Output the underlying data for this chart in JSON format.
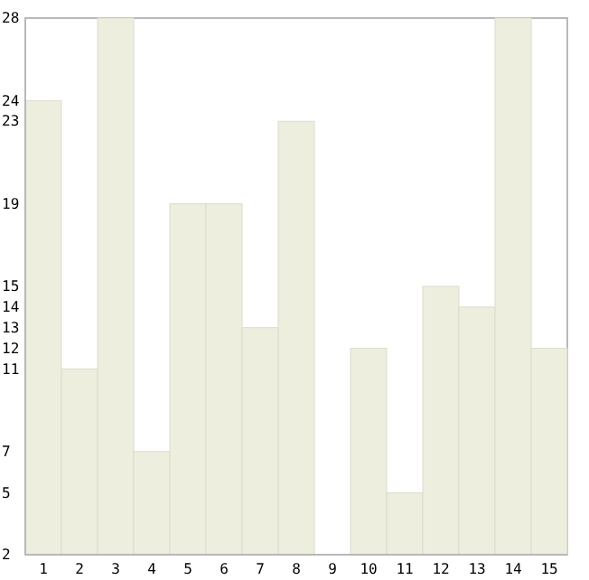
{
  "chart_data": {
    "type": "bar",
    "categories": [
      "1",
      "2",
      "3",
      "4",
      "5",
      "6",
      "7",
      "8",
      "9",
      "10",
      "11",
      "12",
      "13",
      "14",
      "15"
    ],
    "values": [
      24,
      11,
      28,
      7,
      19,
      19,
      13,
      23,
      2,
      12,
      5,
      15,
      14,
      28,
      12
    ],
    "color": "#eeeedf",
    "ylim": [
      2,
      28
    ],
    "yticks": [
      2,
      5,
      7,
      11,
      12,
      13,
      14,
      15,
      19,
      23,
      24,
      28
    ],
    "grid": false
  }
}
